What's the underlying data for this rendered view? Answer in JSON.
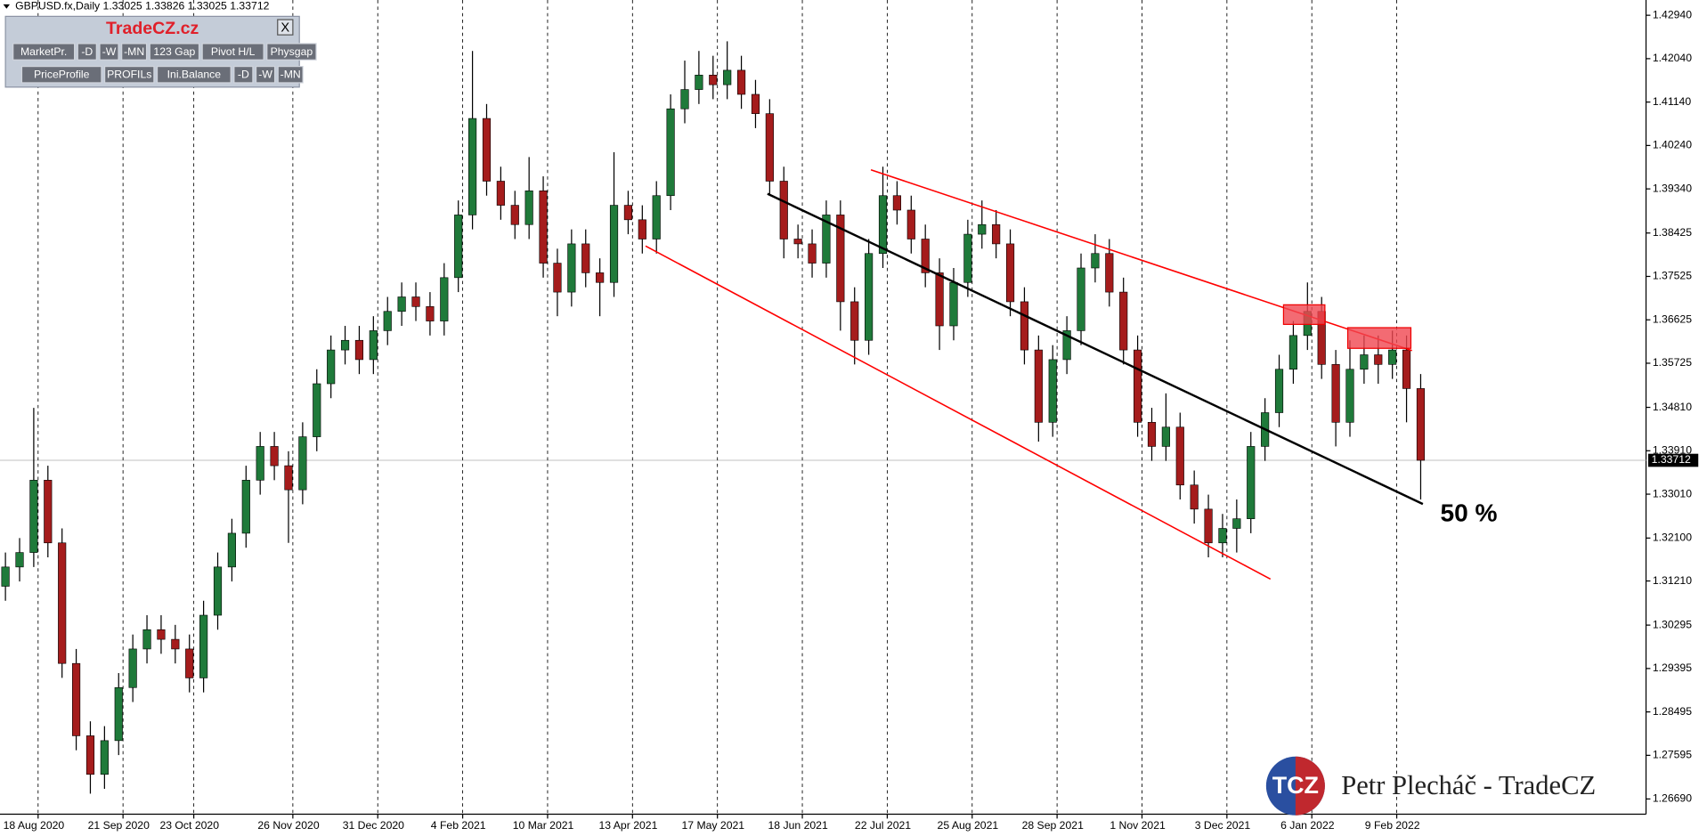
{
  "header": "GBPUSD.fx,Daily  1.33025 1.33826 1.33025 1.33712",
  "panel": {
    "title": "TradeCZ.cz",
    "close": "X",
    "buttons": [
      [
        "MarketPr.",
        "-D",
        "-W",
        "-MN",
        "123 Gap",
        "Pivot H/L",
        "Physgap"
      ],
      [
        "PriceProfile",
        "PROFILs",
        "Ini.Balance",
        "-D",
        "-W",
        "-MN"
      ]
    ]
  },
  "watermark": {
    "logo": "TCZ",
    "text": "Petr Plecháč - TradeCZ"
  },
  "chart_data": {
    "type": "candlestick",
    "up_color": "#1f7a3a",
    "down_color": "#a51c1c",
    "wick_color": "#000000",
    "grid": true,
    "ylim": [
      1.26374,
      1.43256
    ],
    "yticks": [
      {
        "value": 1.4294,
        "label": "1.42940"
      },
      {
        "value": 1.4204,
        "label": "1.42040"
      },
      {
        "value": 1.4114,
        "label": "1.41140"
      },
      {
        "value": 1.4024,
        "label": "1.40240"
      },
      {
        "value": 1.3934,
        "label": "1.39340"
      },
      1.38425,
      1.37525,
      1.36625,
      1.35725,
      {
        "value": 1.3481,
        "label": "1.34810"
      },
      {
        "value": 1.3391,
        "label": "1.33910"
      },
      {
        "value": 1.3301,
        "label": "1.33010"
      },
      {
        "value": 1.321,
        "label": "1.32100"
      },
      {
        "value": 1.3121,
        "label": "1.31210"
      },
      1.30295,
      1.29395,
      1.28495,
      1.27595,
      {
        "value": 1.2669,
        "label": "1.26690"
      }
    ],
    "current_price": 1.33712,
    "annotation": "50 %",
    "categories": [
      null,
      null,
      "18 Aug 2020",
      null,
      null,
      null,
      null,
      null,
      "21 Sep 2020",
      null,
      null,
      null,
      null,
      "23 Oct 2020",
      null,
      null,
      null,
      null,
      null,
      null,
      "26 Nov 2020",
      null,
      null,
      null,
      null,
      null,
      "31 Dec 2020",
      null,
      null,
      null,
      null,
      null,
      "4 Feb 2021",
      null,
      null,
      null,
      null,
      null,
      "10 Mar 2021",
      null,
      null,
      null,
      null,
      null,
      "13 Apr 2021",
      null,
      null,
      null,
      null,
      null,
      "17 May 2021",
      null,
      null,
      null,
      null,
      null,
      "18 Jun 2021",
      null,
      null,
      null,
      null,
      null,
      "22 Jul 2021",
      null,
      null,
      null,
      null,
      null,
      "25 Aug 2021",
      null,
      null,
      null,
      null,
      null,
      "28 Sep 2021",
      null,
      null,
      null,
      null,
      null,
      "1 Nov 2021",
      null,
      null,
      null,
      null,
      null,
      "3 Dec 2021",
      null,
      null,
      null,
      null,
      null,
      "6 Jan 2022",
      null,
      null,
      null,
      null,
      null,
      "9 Feb 2022",
      null,
      null
    ],
    "open": [
      1.311,
      1.315,
      1.318,
      1.333,
      1.32,
      1.295,
      1.28,
      1.272,
      1.279,
      1.29,
      1.298,
      1.302,
      1.3,
      1.298,
      1.292,
      1.305,
      1.315,
      1.322,
      1.333,
      1.34,
      1.336,
      1.331,
      1.342,
      1.353,
      1.36,
      1.362,
      1.358,
      1.364,
      1.368,
      1.371,
      1.369,
      1.366,
      1.375,
      1.388,
      1.408,
      1.395,
      1.39,
      1.386,
      1.393,
      1.378,
      1.372,
      1.382,
      1.376,
      1.374,
      1.39,
      1.387,
      1.383,
      1.392,
      1.41,
      1.414,
      1.417,
      1.415,
      1.418,
      1.413,
      1.409,
      1.395,
      1.383,
      1.382,
      1.378,
      1.388,
      1.37,
      1.362,
      1.38,
      1.392,
      1.389,
      1.383,
      1.376,
      1.365,
      1.374,
      1.384,
      1.386,
      1.382,
      1.37,
      1.36,
      1.345,
      1.358,
      1.364,
      1.377,
      1.38,
      1.372,
      1.36,
      1.345,
      1.34,
      1.344,
      1.332,
      1.327,
      1.32,
      1.323,
      1.325,
      1.34,
      1.347,
      1.356,
      1.363,
      1.368,
      1.357,
      1.345,
      1.356,
      1.359,
      1.357,
      1.36,
      1.352
    ],
    "high": [
      1.318,
      1.321,
      1.348,
      1.336,
      1.323,
      1.298,
      1.283,
      1.282,
      1.293,
      1.301,
      1.305,
      1.305,
      1.303,
      1.301,
      1.308,
      1.318,
      1.325,
      1.336,
      1.343,
      1.343,
      1.339,
      1.345,
      1.356,
      1.363,
      1.365,
      1.365,
      1.367,
      1.371,
      1.374,
      1.374,
      1.372,
      1.378,
      1.391,
      1.422,
      1.411,
      1.398,
      1.393,
      1.4,
      1.396,
      1.381,
      1.385,
      1.385,
      1.379,
      1.401,
      1.393,
      1.39,
      1.395,
      1.413,
      1.42,
      1.422,
      1.421,
      1.424,
      1.421,
      1.416,
      1.412,
      1.398,
      1.386,
      1.385,
      1.391,
      1.391,
      1.373,
      1.383,
      1.398,
      1.395,
      1.392,
      1.386,
      1.379,
      1.377,
      1.387,
      1.391,
      1.389,
      1.385,
      1.373,
      1.363,
      1.361,
      1.367,
      1.38,
      1.384,
      1.383,
      1.375,
      1.363,
      1.348,
      1.351,
      1.347,
      1.335,
      1.33,
      1.326,
      1.329,
      1.343,
      1.35,
      1.359,
      1.366,
      1.374,
      1.371,
      1.36,
      1.362,
      1.363,
      1.363,
      1.364,
      1.363,
      1.355
    ],
    "low": [
      1.308,
      1.312,
      1.315,
      1.317,
      1.292,
      1.277,
      1.268,
      1.269,
      1.276,
      1.287,
      1.295,
      1.297,
      1.295,
      1.289,
      1.289,
      1.302,
      1.312,
      1.319,
      1.33,
      1.333,
      1.32,
      1.328,
      1.339,
      1.35,
      1.357,
      1.355,
      1.355,
      1.361,
      1.365,
      1.366,
      1.363,
      1.363,
      1.372,
      1.385,
      1.392,
      1.387,
      1.383,
      1.383,
      1.375,
      1.367,
      1.369,
      1.373,
      1.367,
      1.371,
      1.384,
      1.38,
      1.38,
      1.389,
      1.407,
      1.411,
      1.412,
      1.412,
      1.41,
      1.406,
      1.392,
      1.379,
      1.379,
      1.375,
      1.375,
      1.364,
      1.357,
      1.359,
      1.377,
      1.386,
      1.38,
      1.373,
      1.36,
      1.362,
      1.371,
      1.381,
      1.379,
      1.367,
      1.357,
      1.341,
      1.342,
      1.355,
      1.361,
      1.374,
      1.369,
      1.357,
      1.342,
      1.337,
      1.337,
      1.329,
      1.324,
      1.317,
      1.317,
      1.318,
      1.322,
      1.337,
      1.344,
      1.353,
      1.36,
      1.354,
      1.34,
      1.342,
      1.353,
      1.353,
      1.354,
      1.345,
      1.329
    ],
    "close": [
      1.315,
      1.318,
      1.333,
      1.32,
      1.295,
      1.28,
      1.272,
      1.279,
      1.29,
      1.298,
      1.302,
      1.3,
      1.298,
      1.292,
      1.305,
      1.315,
      1.322,
      1.333,
      1.34,
      1.336,
      1.331,
      1.342,
      1.353,
      1.36,
      1.362,
      1.358,
      1.364,
      1.368,
      1.371,
      1.369,
      1.366,
      1.375,
      1.388,
      1.408,
      1.395,
      1.39,
      1.386,
      1.393,
      1.378,
      1.372,
      1.382,
      1.376,
      1.374,
      1.39,
      1.387,
      1.383,
      1.392,
      1.41,
      1.414,
      1.417,
      1.415,
      1.418,
      1.413,
      1.409,
      1.395,
      1.383,
      1.382,
      1.378,
      1.388,
      1.37,
      1.362,
      1.38,
      1.392,
      1.389,
      1.383,
      1.376,
      1.365,
      1.374,
      1.384,
      1.386,
      1.382,
      1.37,
      1.36,
      1.345,
      1.358,
      1.364,
      1.377,
      1.38,
      1.372,
      1.36,
      1.345,
      1.34,
      1.344,
      1.332,
      1.327,
      1.32,
      1.323,
      1.325,
      1.34,
      1.347,
      1.356,
      1.363,
      1.368,
      1.357,
      1.345,
      1.356,
      1.359,
      1.357,
      1.36,
      1.352,
      1.33712
    ]
  }
}
